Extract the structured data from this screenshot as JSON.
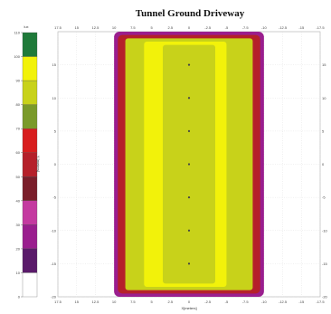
{
  "chart_data": {
    "type": "heatmap",
    "title": "Tunnel Ground Driveway",
    "xlabel": "X[meters]",
    "ylabel": "Y [meters]",
    "colorbar_unit": "lux",
    "x_ticks": [
      "17.5",
      "15",
      "12.5",
      "10",
      "7.5",
      "5",
      "2.5",
      "0",
      "-2.5",
      "-5",
      "-7.5",
      "-10",
      "-12.5",
      "-15",
      "-17.5"
    ],
    "y_ticks": [
      "15",
      "10",
      "5",
      "0",
      "-5",
      "-10",
      "-15",
      "-20"
    ],
    "xlim": [
      17.5,
      -17.5
    ],
    "ylim": [
      -20,
      20
    ],
    "colorbar": {
      "ticks": [
        "110",
        "100",
        "90",
        "80",
        "70",
        "60",
        "50",
        "40",
        "30",
        "20",
        "10",
        "0"
      ],
      "bands": [
        {
          "from": 100,
          "to": 110,
          "color": "#1f7a3a"
        },
        {
          "from": 90,
          "to": 100,
          "color": "#f2f20a"
        },
        {
          "from": 80,
          "to": 90,
          "color": "#c8d21a"
        },
        {
          "from": 70,
          "to": 80,
          "color": "#7a9a2a"
        },
        {
          "from": 60,
          "to": 70,
          "color": "#d81e1e"
        },
        {
          "from": 50,
          "to": 60,
          "color": "#b5202a"
        },
        {
          "from": 40,
          "to": 50,
          "color": "#7a1e2a"
        },
        {
          "from": 30,
          "to": 40,
          "color": "#c43aa0"
        },
        {
          "from": 20,
          "to": 30,
          "color": "#9a1e8e"
        },
        {
          "from": 10,
          "to": 20,
          "color": "#5a1a6a"
        },
        {
          "from": 0,
          "to": 10,
          "color": "#ffffff"
        }
      ]
    },
    "heat_levels": [
      {
        "x_range": [
          -10,
          10
        ],
        "y_range": [
          -20,
          20
        ],
        "color": "#9a1e8e"
      },
      {
        "x_range": [
          -9.5,
          9.5
        ],
        "y_range": [
          -19.5,
          19.5
        ],
        "color": "#b5202a"
      },
      {
        "x_range": [
          -8.5,
          8.5
        ],
        "y_range": [
          -19,
          19
        ],
        "color": "#c8d21a"
      },
      {
        "x_range": [
          -5,
          6
        ],
        "y_range": [
          -18.5,
          18.5
        ],
        "color": "#f2f20a"
      },
      {
        "x_range": [
          -3.5,
          3.5
        ],
        "y_range": [
          -18,
          18
        ],
        "color": "#c8d21a"
      }
    ],
    "points": [
      {
        "x": 0,
        "y": 15
      },
      {
        "x": 0,
        "y": 10
      },
      {
        "x": 0,
        "y": 5
      },
      {
        "x": 0,
        "y": 0
      },
      {
        "x": 0,
        "y": -5
      },
      {
        "x": 0,
        "y": -10
      },
      {
        "x": 0,
        "y": -15
      }
    ]
  }
}
